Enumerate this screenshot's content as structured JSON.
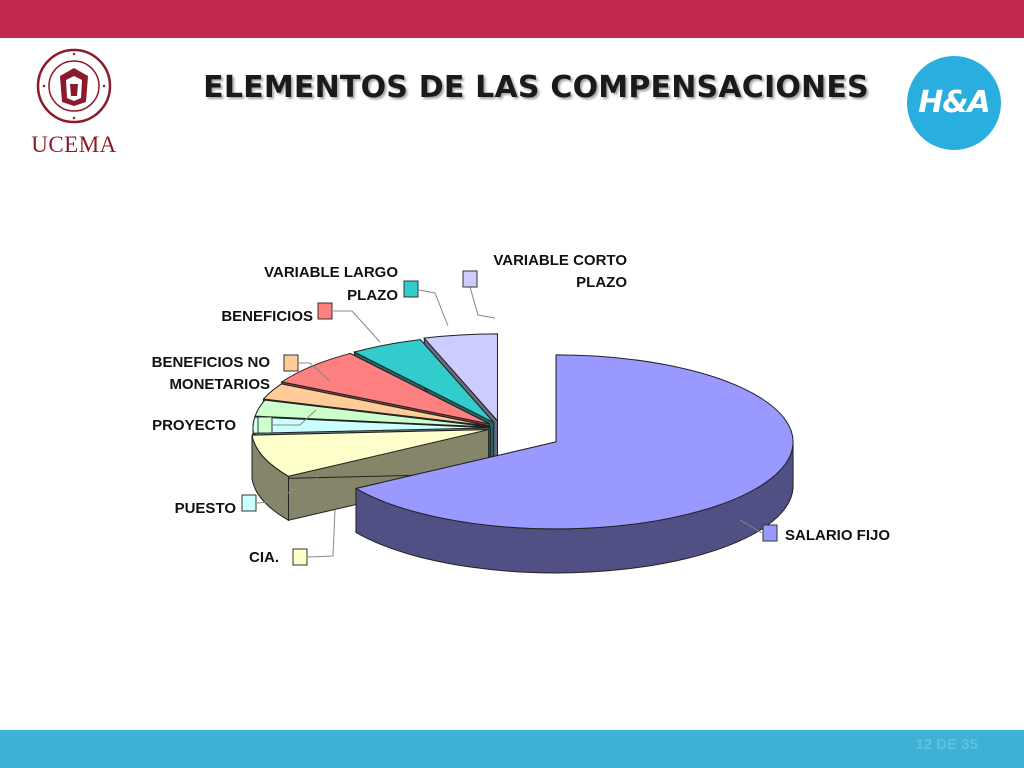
{
  "slide": {
    "title": "ELEMENTOS DE LAS COMPENSACIONES",
    "page_number": "12 DE 35",
    "logo_left_name": "UCEMA",
    "logo_left_seal_text": "UNIVERSIDAD DEL CEMA MCMLXXVIII",
    "logo_right_text": "H&A",
    "colors": {
      "top_bar": "#c0284e",
      "bottom_bar": "#3fb0d6",
      "logo_right_bg": "#2aaee0",
      "ucema_red": "#8b1a2b"
    }
  },
  "chart_data": {
    "type": "pie",
    "style": "3d-exploded",
    "title": "",
    "legend": "none",
    "slices": [
      {
        "label": "SALARIO FIJO",
        "label_lines": [
          "SALARIO FIJO"
        ],
        "value": 66,
        "color": "#9999ff"
      },
      {
        "label": "CIA.",
        "label_lines": [
          "CIA."
        ],
        "value": 8,
        "color": "#ffffcc"
      },
      {
        "label": "PUESTO",
        "label_lines": [
          "PUESTO"
        ],
        "value": 3,
        "color": "#ccffff"
      },
      {
        "label": "PROYECTO",
        "label_lines": [
          "PROYECTO"
        ],
        "value": 3,
        "color": "#ccffcc"
      },
      {
        "label": "BENEFICIOS NO MONETARIOS",
        "label_lines": [
          "BENEFICIOS NO",
          "MONETARIOS"
        ],
        "value": 3,
        "color": "#ffcc99"
      },
      {
        "label": "BENEFICIOS",
        "label_lines": [
          "BENEFICIOS"
        ],
        "value": 7,
        "color": "#ff8080"
      },
      {
        "label": "VARIABLE LARGO PLAZO",
        "label_lines": [
          "VARIABLE LARGO",
          "PLAZO"
        ],
        "value": 5,
        "color": "#33cccc"
      },
      {
        "label": "VARIABLE CORTO PLAZO",
        "label_lines": [
          "VARIABLE CORTO",
          "PLAZO"
        ],
        "value": 5,
        "color": "#ccccff"
      }
    ]
  }
}
